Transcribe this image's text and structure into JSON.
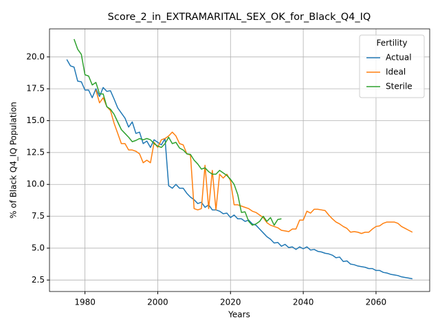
{
  "chart_data": {
    "type": "line",
    "title": "Score_2_in_EXTRAMARITAL_SEX_OK_for_Black_Q4_IQ",
    "xlabel": "Years",
    "ylabel": "% of Black Q4_IQ Population",
    "x": [
      1975,
      1976,
      1977,
      1978,
      1979,
      1980,
      1981,
      1982,
      1983,
      1984,
      1985,
      1986,
      1987,
      1988,
      1989,
      1990,
      1991,
      1992,
      1993,
      1994,
      1995,
      1996,
      1997,
      1998,
      1999,
      2000,
      2001,
      2002,
      2003,
      2004,
      2005,
      2006,
      2007,
      2008,
      2009,
      2010,
      2011,
      2012,
      2013,
      2014,
      2015,
      2016,
      2017,
      2018,
      2019,
      2020,
      2021,
      2022,
      2023,
      2024,
      2025,
      2026,
      2027,
      2028,
      2029,
      2030,
      2031,
      2032,
      2033,
      2034,
      2035,
      2036,
      2037,
      2038,
      2039,
      2040,
      2041,
      2042,
      2043,
      2044,
      2045,
      2046,
      2047,
      2048,
      2049,
      2050,
      2051,
      2052,
      2053,
      2054,
      2055,
      2056,
      2057,
      2058,
      2059,
      2060,
      2061,
      2062,
      2063,
      2064,
      2065,
      2066,
      2067,
      2068,
      2069,
      2070
    ],
    "series": [
      {
        "name": "Actual",
        "color": "#1f77b4",
        "values": [
          19.8,
          19.3,
          19.2,
          18.1,
          18.05,
          17.4,
          17.4,
          16.8,
          17.5,
          16.9,
          17.6,
          17.3,
          17.35,
          16.7,
          16.0,
          15.6,
          15.2,
          14.5,
          14.9,
          14.0,
          14.1,
          13.2,
          13.4,
          12.9,
          13.5,
          13.3,
          13.1,
          13.6,
          9.9,
          9.7,
          10.0,
          9.7,
          9.7,
          9.3,
          9.0,
          8.8,
          8.5,
          8.6,
          8.2,
          8.4,
          8.0,
          8.0,
          7.9,
          7.7,
          7.75,
          7.4,
          7.6,
          7.3,
          7.3,
          7.1,
          7.2,
          6.9,
          6.8,
          6.5,
          6.2,
          5.9,
          5.7,
          5.4,
          5.45,
          5.15,
          5.3,
          5.05,
          5.1,
          4.9,
          5.1,
          4.95,
          5.1,
          4.85,
          4.9,
          4.75,
          4.7,
          4.6,
          4.55,
          4.45,
          4.25,
          4.3,
          3.95,
          4.0,
          3.75,
          3.7,
          3.6,
          3.55,
          3.5,
          3.4,
          3.4,
          3.25,
          3.25,
          3.1,
          3.05,
          2.95,
          2.9,
          2.85,
          2.75,
          2.7,
          2.65,
          2.6
        ]
      },
      {
        "name": "Ideal",
        "color": "#ff7f0e",
        "values": [
          null,
          null,
          null,
          null,
          null,
          null,
          null,
          null,
          17.4,
          16.4,
          16.8,
          16.1,
          15.8,
          14.8,
          14.0,
          13.2,
          13.2,
          12.7,
          12.7,
          12.6,
          12.4,
          11.7,
          11.9,
          11.7,
          13.3,
          12.9,
          13.5,
          13.6,
          13.8,
          14.1,
          13.8,
          13.2,
          13.1,
          12.4,
          12.3,
          8.1,
          8.0,
          8.1,
          11.5,
          8.1,
          11.1,
          8.0,
          10.8,
          10.5,
          10.8,
          10.3,
          8.4,
          8.4,
          8.3,
          8.2,
          8.1,
          7.9,
          7.8,
          7.6,
          7.4,
          7.0,
          6.8,
          6.7,
          6.6,
          6.4,
          6.35,
          6.3,
          6.5,
          6.5,
          7.2,
          7.2,
          7.9,
          7.75,
          8.05,
          8.05,
          8.0,
          7.95,
          7.6,
          7.3,
          7.05,
          6.9,
          6.7,
          6.55,
          6.25,
          6.3,
          6.25,
          6.15,
          6.25,
          6.25,
          6.5,
          6.7,
          6.75,
          6.95,
          7.05,
          7.05,
          7.05,
          6.95,
          6.7,
          6.55,
          6.4,
          6.25
        ]
      },
      {
        "name": "Sterile",
        "color": "#2ca02c",
        "values": [
          null,
          null,
          21.4,
          20.6,
          20.2,
          18.6,
          18.5,
          17.8,
          18.0,
          17.1,
          17.1,
          16.1,
          15.9,
          15.5,
          14.9,
          14.3,
          14.0,
          13.7,
          13.35,
          13.45,
          13.6,
          13.5,
          13.6,
          13.5,
          13.2,
          13.0,
          12.9,
          13.2,
          13.7,
          13.2,
          13.3,
          12.85,
          12.7,
          12.4,
          12.35,
          11.9,
          11.6,
          11.2,
          11.3,
          11.0,
          10.8,
          10.8,
          11.1,
          10.9,
          10.7,
          10.4,
          10.0,
          9.2,
          7.8,
          7.85,
          7.1,
          6.8,
          6.9,
          7.1,
          7.5,
          7.1,
          7.4,
          6.8,
          7.25,
          7.3,
          null,
          null,
          null,
          null,
          null,
          null,
          null,
          null,
          null,
          null,
          null,
          null,
          null,
          null,
          null,
          null,
          null,
          null,
          null,
          null,
          null,
          null,
          null,
          null,
          null,
          null,
          null,
          null,
          null,
          null,
          null,
          null,
          null,
          null,
          null,
          null
        ]
      }
    ],
    "xlim": [
      1970.25,
      2074.75
    ],
    "ylim": [
      1.6,
      22.2
    ],
    "xticks": [
      1980,
      2000,
      2020,
      2040,
      2060
    ],
    "yticks": [
      2.5,
      {
        "value": 5,
        "label": "5.0"
      },
      7.5,
      {
        "value": 10,
        "label": "10.0"
      },
      12.5,
      {
        "value": 15,
        "label": "15.0"
      },
      17.5,
      {
        "value": 20,
        "label": "20.0"
      }
    ],
    "grid": true,
    "legend_title": "Fertility",
    "legend_loc": "upper right"
  }
}
